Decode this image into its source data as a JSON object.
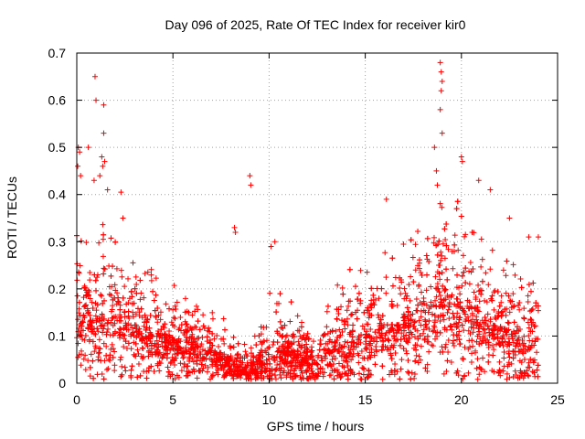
{
  "chart_data": {
    "type": "scatter",
    "title": "Day 096 of 2025, Rate Of TEC Index for receiver kir0",
    "xlabel": "GPS time / hours",
    "ylabel": "ROTI / TECUs",
    "xlim": [
      0,
      25
    ],
    "ylim": [
      0,
      0.7
    ],
    "xticks": [
      0,
      5,
      10,
      15,
      20,
      25
    ],
    "yticks": [
      0,
      0.1,
      0.2,
      0.3,
      0.4,
      0.5,
      0.6,
      0.7
    ],
    "xtick_labels": [
      "0",
      "5",
      "10",
      "15",
      "20",
      "25"
    ],
    "ytick_labels": [
      "0",
      "0.1",
      "0.2",
      "0.3",
      "0.4",
      "0.5",
      "0.6",
      "0.7"
    ],
    "grid": true,
    "marker": "+",
    "color": "#ff0000",
    "series": [
      {
        "name": "ROTI",
        "profile": {
          "x": [
            0,
            0.5,
            1,
            1.5,
            2,
            2.5,
            3,
            3.5,
            4,
            4.5,
            5,
            5.5,
            6,
            6.5,
            7,
            7.5,
            8,
            8.5,
            9,
            9.5,
            10,
            10.5,
            11,
            11.5,
            12,
            12.5,
            13,
            13.5,
            14,
            14.5,
            15,
            15.5,
            16,
            16.5,
            17,
            17.5,
            18,
            18.5,
            19,
            19.5,
            20,
            20.5,
            21,
            21.5,
            22,
            22.5,
            23,
            23.5,
            24
          ],
          "center": [
            0.14,
            0.13,
            0.12,
            0.13,
            0.13,
            0.12,
            0.11,
            0.1,
            0.1,
            0.09,
            0.08,
            0.075,
            0.07,
            0.06,
            0.06,
            0.05,
            0.04,
            0.03,
            0.025,
            0.04,
            0.06,
            0.06,
            0.06,
            0.05,
            0.05,
            0.04,
            0.05,
            0.06,
            0.07,
            0.08,
            0.08,
            0.09,
            0.1,
            0.1,
            0.11,
            0.11,
            0.12,
            0.14,
            0.16,
            0.15,
            0.14,
            0.13,
            0.12,
            0.11,
            0.1,
            0.09,
            0.08,
            0.08,
            0.08
          ],
          "spread": [
            0.08,
            0.08,
            0.09,
            0.1,
            0.09,
            0.08,
            0.08,
            0.07,
            0.07,
            0.06,
            0.06,
            0.05,
            0.05,
            0.05,
            0.045,
            0.045,
            0.03,
            0.03,
            0.03,
            0.05,
            0.07,
            0.07,
            0.06,
            0.05,
            0.04,
            0.04,
            0.05,
            0.07,
            0.08,
            0.08,
            0.07,
            0.07,
            0.09,
            0.09,
            0.09,
            0.09,
            0.1,
            0.12,
            0.13,
            0.12,
            0.11,
            0.1,
            0.1,
            0.09,
            0.08,
            0.08,
            0.07,
            0.07,
            0.07
          ]
        },
        "outliers": [
          [
            0.05,
            0.46
          ],
          [
            0.08,
            0.5
          ],
          [
            0.15,
            0.49
          ],
          [
            0.2,
            0.44
          ],
          [
            0.6,
            0.5
          ],
          [
            0.95,
            0.65
          ],
          [
            1.0,
            0.6
          ],
          [
            1.4,
            0.59
          ],
          [
            1.4,
            0.53
          ],
          [
            1.3,
            0.48
          ],
          [
            1.35,
            0.46
          ],
          [
            1.45,
            0.47
          ],
          [
            1.2,
            0.44
          ],
          [
            1.6,
            0.41
          ],
          [
            0.9,
            0.43
          ],
          [
            2.3,
            0.405
          ],
          [
            2.4,
            0.35
          ],
          [
            8.2,
            0.33
          ],
          [
            8.25,
            0.32
          ],
          [
            9.0,
            0.44
          ],
          [
            9.05,
            0.42
          ],
          [
            10.3,
            0.3
          ],
          [
            10.1,
            0.29
          ],
          [
            16.1,
            0.39
          ],
          [
            18.6,
            0.5
          ],
          [
            18.7,
            0.45
          ],
          [
            18.75,
            0.42
          ],
          [
            18.9,
            0.68
          ],
          [
            18.95,
            0.66
          ],
          [
            19.0,
            0.64
          ],
          [
            18.95,
            0.62
          ],
          [
            18.9,
            0.58
          ],
          [
            19.0,
            0.53
          ],
          [
            20.0,
            0.48
          ],
          [
            20.05,
            0.47
          ],
          [
            20.9,
            0.43
          ],
          [
            21.5,
            0.41
          ],
          [
            22.5,
            0.35
          ],
          [
            23.5,
            0.31
          ],
          [
            24.0,
            0.31
          ]
        ]
      }
    ]
  }
}
